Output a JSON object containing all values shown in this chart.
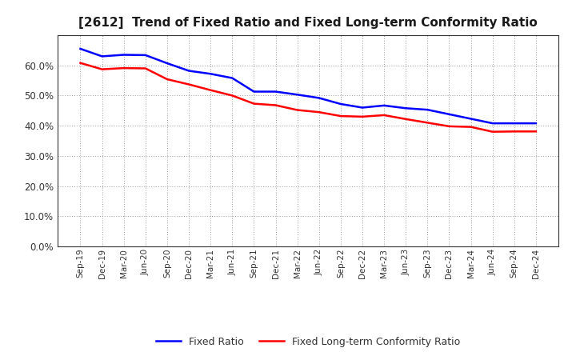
{
  "title": "[2612]  Trend of Fixed Ratio and Fixed Long-term Conformity Ratio",
  "x_labels": [
    "Sep-19",
    "Dec-19",
    "Mar-20",
    "Jun-20",
    "Sep-20",
    "Dec-20",
    "Mar-21",
    "Jun-21",
    "Sep-21",
    "Dec-21",
    "Mar-22",
    "Jun-22",
    "Sep-22",
    "Dec-22",
    "Mar-23",
    "Jun-23",
    "Sep-23",
    "Dec-23",
    "Mar-24",
    "Jun-24",
    "Sep-24",
    "Dec-24"
  ],
  "fixed_ratio": [
    0.655,
    0.63,
    0.635,
    0.634,
    0.607,
    0.582,
    0.572,
    0.558,
    0.513,
    0.513,
    0.503,
    0.492,
    0.472,
    0.46,
    0.467,
    0.458,
    0.453,
    0.438,
    0.423,
    0.408,
    0.408,
    0.408
  ],
  "fixed_lt_ratio": [
    0.608,
    0.587,
    0.591,
    0.59,
    0.554,
    0.537,
    0.518,
    0.5,
    0.473,
    0.468,
    0.452,
    0.445,
    0.432,
    0.43,
    0.435,
    0.422,
    0.41,
    0.398,
    0.396,
    0.38,
    0.381,
    0.381
  ],
  "fixed_ratio_color": "#0000FF",
  "fixed_lt_ratio_color": "#FF0000",
  "ylim": [
    0.0,
    0.7
  ],
  "yticks": [
    0.0,
    0.1,
    0.2,
    0.3,
    0.4,
    0.5,
    0.6
  ],
  "background_color": "#FFFFFF",
  "grid_color": "#999999",
  "legend_fixed_ratio": "Fixed Ratio",
  "legend_fixed_lt_ratio": "Fixed Long-term Conformity Ratio"
}
